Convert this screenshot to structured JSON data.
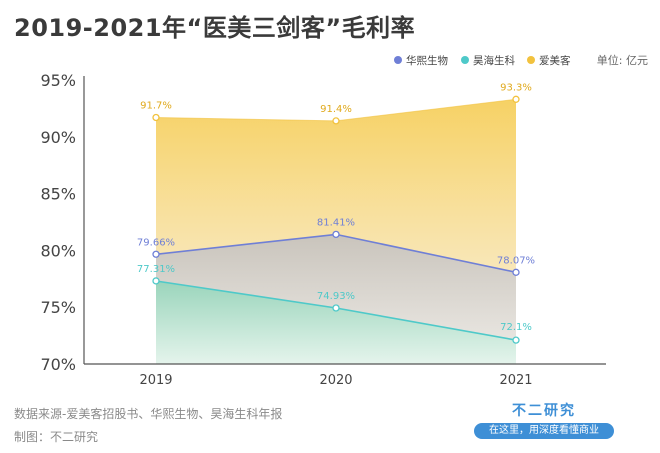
{
  "chart_data": {
    "type": "area",
    "title": "2019-2021年“医美三剑客”毛利率",
    "unit": "单位: 亿元",
    "x": [
      "2019",
      "2020",
      "2021"
    ],
    "ylim": [
      70,
      95
    ],
    "yticks": [
      70,
      75,
      80,
      85,
      90,
      95
    ],
    "ytick_labels": [
      "70%",
      "75%",
      "80%",
      "85%",
      "90%",
      "95%"
    ],
    "grid": false,
    "legend_position": "top-right",
    "series": [
      {
        "name": "华熙生物",
        "values": [
          79.66,
          81.41,
          78.07
        ],
        "labels": [
          "79.66%",
          "81.41%",
          "78.07%"
        ],
        "color": "#6f7fd6"
      },
      {
        "name": "昊海生科",
        "values": [
          77.31,
          74.93,
          72.1
        ],
        "labels": [
          "77.31%",
          "74.93%",
          "72.1%"
        ],
        "color": "#4ec9c9"
      },
      {
        "name": "爱美客",
        "values": [
          91.7,
          91.4,
          93.3
        ],
        "labels": [
          "91.7%",
          "91.4%",
          "93.3%"
        ],
        "color": "#f2c23e"
      }
    ]
  },
  "footer": {
    "source": "数据来源-爱美客招股书、华熙生物、昊海生科年报",
    "credit": "制图：不二研究"
  },
  "brand": {
    "name": "不二研究",
    "slogan": "在这里，用深度看懂商业"
  }
}
